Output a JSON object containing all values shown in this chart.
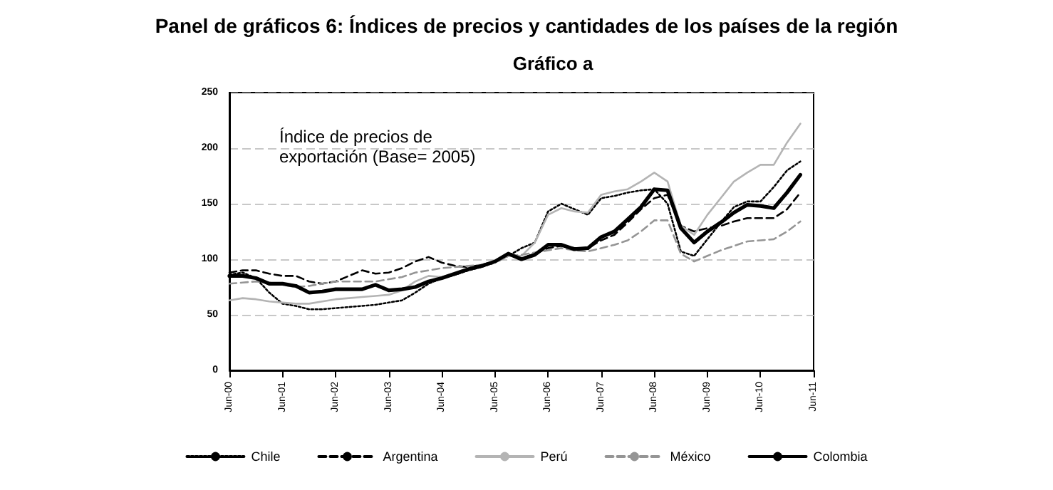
{
  "chart_data": {
    "type": "line",
    "title": "Panel de gráficos 6: Índices de precios y cantidades de los países de la región",
    "subtitle": "Gráfico a",
    "annotations": [
      "Índice de precios de\nexportación (Base= 2005)"
    ],
    "categories": [
      "Jun-00",
      null,
      null,
      null,
      "Jun-01",
      null,
      null,
      null,
      "Jun-02",
      null,
      null,
      null,
      "Jun-03",
      null,
      null,
      null,
      "Jun-04",
      null,
      null,
      null,
      "Jun-05",
      null,
      null,
      null,
      "Jun-06",
      null,
      null,
      null,
      "Jun-07",
      null,
      null,
      null,
      "Jun-08",
      null,
      null,
      null,
      "Jun-09",
      null,
      null,
      null,
      "Jun-10",
      null,
      null,
      null,
      "Jun-11"
    ],
    "series": [
      {
        "name": "Chile",
        "color": "#000000",
        "line_style": "dotted",
        "values": [
          86,
          88,
          83,
          70,
          60,
          58,
          55,
          55,
          56,
          57,
          58,
          59,
          61,
          63,
          70,
          78,
          83,
          86,
          90,
          93,
          97,
          103,
          110,
          115,
          143,
          150,
          145,
          140,
          155,
          157,
          160,
          162,
          163,
          150,
          107,
          103,
          118,
          133,
          147,
          152,
          152,
          165,
          180,
          188,
          null
        ]
      },
      {
        "name": "Argentina",
        "color": "#000000",
        "line_style": "dashed",
        "values": [
          88,
          90,
          90,
          87,
          85,
          85,
          80,
          78,
          80,
          85,
          90,
          87,
          88,
          92,
          98,
          102,
          97,
          94,
          93,
          95,
          98,
          104,
          101,
          105,
          110,
          112,
          110,
          110,
          117,
          122,
          133,
          145,
          155,
          158,
          130,
          125,
          128,
          130,
          134,
          137,
          137,
          137,
          145,
          160,
          null
        ]
      },
      {
        "name": "Perú",
        "color": "#b4b4b4",
        "line_style": "solid",
        "values": [
          63,
          65,
          64,
          62,
          61,
          60,
          60,
          62,
          64,
          65,
          66,
          67,
          68,
          72,
          80,
          85,
          84,
          88,
          92,
          94,
          97,
          103,
          103,
          115,
          140,
          146,
          143,
          142,
          158,
          161,
          163,
          170,
          178,
          170,
          130,
          122,
          140,
          155,
          170,
          178,
          185,
          185,
          205,
          222,
          null
        ]
      },
      {
        "name": "México",
        "color": "#959595",
        "line_style": "dashed",
        "values": [
          78,
          79,
          80,
          79,
          77,
          75,
          76,
          78,
          80,
          80,
          80,
          80,
          82,
          84,
          88,
          90,
          92,
          93,
          94,
          95,
          98,
          103,
          104,
          106,
          108,
          110,
          108,
          107,
          110,
          113,
          117,
          125,
          135,
          135,
          105,
          98,
          103,
          108,
          112,
          116,
          117,
          118,
          125,
          134,
          null
        ]
      },
      {
        "name": "Colombia",
        "color": "#000000",
        "line_style": "solid",
        "values": [
          85,
          85,
          83,
          78,
          78,
          76,
          70,
          71,
          73,
          73,
          73,
          77,
          72,
          73,
          75,
          80,
          83,
          87,
          91,
          94,
          98,
          105,
          100,
          104,
          113,
          113,
          109,
          110,
          120,
          125,
          136,
          147,
          163,
          162,
          128,
          115,
          125,
          133,
          142,
          149,
          148,
          146,
          160,
          176,
          null
        ]
      }
    ],
    "ylim": [
      0,
      250
    ],
    "yticks": [
      0,
      50,
      100,
      150,
      200,
      250
    ],
    "grid": "y",
    "legend": "bottom",
    "marker": "none"
  }
}
